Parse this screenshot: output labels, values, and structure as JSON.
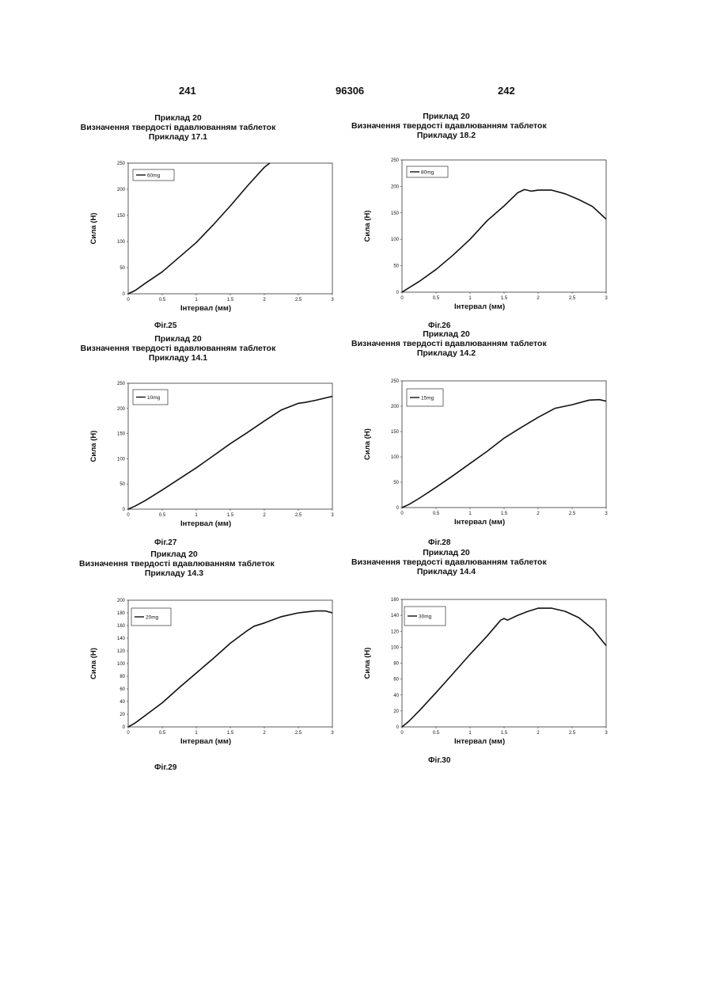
{
  "header": {
    "left": "241",
    "center": "96306",
    "right": "242"
  },
  "charts": [
    {
      "id": "fig25",
      "heading": [
        "Приклад 20",
        "Визначення твердості вдавлюванням таблеток",
        "Прикладу 17.1"
      ],
      "fig_label": "Фіг.25",
      "chart_data": {
        "type": "line",
        "xlabel": "Інтервал (мм)",
        "ylabel": "Сила (Н)",
        "xlim": [
          0,
          3
        ],
        "ylim": [
          0,
          250
        ],
        "xticks": [
          "0",
          "0.5",
          "1",
          "1.5",
          "2",
          "2.5",
          "3"
        ],
        "yticks": [
          "0",
          "50",
          "100",
          "150",
          "200",
          "250"
        ],
        "legend_position": "top-left",
        "series": [
          {
            "name": "60mg",
            "x": [
              0,
              0.1,
              0.25,
              0.5,
              0.75,
              1.0,
              1.25,
              1.5,
              1.75,
              2.0,
              2.08
            ],
            "y": [
              0,
              6,
              20,
              42,
              70,
              98,
              132,
              168,
              206,
              242,
              250
            ]
          }
        ]
      }
    },
    {
      "id": "fig26",
      "heading": [
        "Приклад 20",
        "Визначення твердості вдавлюванням таблеток",
        "Прикладу 18.2"
      ],
      "fig_label": "Фіг.26",
      "chart_data": {
        "type": "line",
        "xlabel": "Інтервал (мм)",
        "ylabel": "Сила (Н)",
        "xlim": [
          0,
          3
        ],
        "ylim": [
          0,
          250
        ],
        "xticks": [
          "0",
          "0.5",
          "1",
          "1.5",
          "2",
          "2.5",
          "3"
        ],
        "yticks": [
          "0",
          "50",
          "100",
          "150",
          "200",
          "250"
        ],
        "legend_position": "top-left",
        "series": [
          {
            "name": "80mg",
            "x": [
              0,
              0.25,
              0.5,
              0.75,
              1.0,
              1.25,
              1.5,
              1.7,
              1.8,
              1.9,
              2.0,
              2.2,
              2.4,
              2.6,
              2.8,
              3.0
            ],
            "y": [
              0,
              20,
              43,
              70,
              100,
              135,
              163,
              188,
              194,
              191,
              193,
              193,
              186,
              175,
              162,
              138
            ]
          }
        ]
      }
    },
    {
      "id": "fig27",
      "heading": [
        "Приклад 20",
        "Визначення твердості вдавлюванням таблеток",
        "Прикладу 14.1"
      ],
      "fig_label": "Фіг.27",
      "chart_data": {
        "type": "line",
        "xlabel": "Інтервал (мм)",
        "ylabel": "Сила (Н)",
        "xlim": [
          0,
          3
        ],
        "ylim": [
          0,
          250
        ],
        "xticks": [
          "0",
          "0.5",
          "1",
          "1.5",
          "2",
          "2.5",
          "3"
        ],
        "yticks": [
          "0",
          "50",
          "100",
          "150",
          "200",
          "250"
        ],
        "legend_position": "top-left",
        "series": [
          {
            "name": "10mg",
            "x": [
              0,
              0.1,
              0.25,
              0.5,
              0.75,
              1.0,
              1.25,
              1.5,
              1.75,
              2.0,
              2.25,
              2.5,
              2.6,
              2.75,
              3.0
            ],
            "y": [
              0,
              6,
              17,
              38,
              60,
              82,
              106,
              130,
              152,
              175,
              197,
              210,
              212,
              216,
              224
            ]
          }
        ]
      }
    },
    {
      "id": "fig28",
      "heading": [
        "Приклад 20",
        "Визначення твердості вдавлюванням таблеток",
        "Прикладу 14.2"
      ],
      "fig_label": "Фіг.28",
      "chart_data": {
        "type": "line",
        "xlabel": "Інтервал (мм)",
        "ylabel": "Сила (Н)",
        "xlim": [
          0,
          3
        ],
        "ylim": [
          0,
          250
        ],
        "xticks": [
          "0",
          "0.5",
          "1",
          "1.5",
          "2",
          "2.5",
          "3"
        ],
        "yticks": [
          "0",
          "50",
          "100",
          "150",
          "200",
          "250"
        ],
        "legend_position": "top-left",
        "series": [
          {
            "name": "15mg",
            "x": [
              0,
              0.1,
              0.25,
              0.5,
              0.75,
              1.0,
              1.25,
              1.5,
              1.75,
              2.0,
              2.25,
              2.5,
              2.75,
              2.9,
              3.0
            ],
            "y": [
              0,
              6,
              18,
              40,
              63,
              87,
              111,
              137,
              158,
              178,
              196,
              203,
              212,
              213,
              210
            ]
          }
        ]
      }
    },
    {
      "id": "fig29",
      "heading": [
        "Приклад 20",
        "Визначення твердості вдавлюванням таблеток",
        "Прикладу 14.3"
      ],
      "fig_label": "Фіг.29",
      "chart_data": {
        "type": "line",
        "xlabel": "Інтервал (мм)",
        "ylabel": "Сила (Н)",
        "xlim": [
          0,
          3
        ],
        "ylim": [
          0,
          200
        ],
        "xticks": [
          "0",
          "0.5",
          "1",
          "1.5",
          "2",
          "2.5",
          "3"
        ],
        "yticks": [
          "0",
          "20",
          "40",
          "60",
          "80",
          "100",
          "120",
          "140",
          "160",
          "180",
          "200"
        ],
        "legend_position": "top-left",
        "series": [
          {
            "name": "20mg",
            "x": [
              0,
              0.1,
              0.25,
              0.5,
              0.75,
              1.0,
              1.25,
              1.5,
              1.75,
              1.85,
              2.0,
              2.25,
              2.5,
              2.75,
              2.9,
              3.0
            ],
            "y": [
              0,
              6,
              18,
              38,
              62,
              85,
              108,
              132,
              152,
              159,
              164,
              174,
              180,
              183,
              183,
              180
            ]
          }
        ]
      }
    },
    {
      "id": "fig30",
      "heading": [
        "Приклад 20",
        "Визначення твердості вдавлюванням таблеток",
        "Прикладу 14.4"
      ],
      "fig_label": "Фіг.30",
      "chart_data": {
        "type": "line",
        "xlabel": "Інтервал (мм)",
        "ylabel": "Сила (Н)",
        "xlim": [
          0,
          3
        ],
        "ylim": [
          0,
          160
        ],
        "xticks": [
          "0",
          "0.5",
          "1",
          "1.5",
          "2",
          "2.5",
          "3"
        ],
        "yticks": [
          "0",
          "20",
          "40",
          "60",
          "80",
          "100",
          "120",
          "140",
          "160"
        ],
        "legend_position": "top-left",
        "series": [
          {
            "name": "30mg",
            "x": [
              0,
              0.1,
              0.25,
              0.5,
              0.75,
              1.0,
              1.25,
              1.45,
              1.5,
              1.55,
              1.7,
              1.85,
              2.0,
              2.2,
              2.4,
              2.6,
              2.8,
              3.0
            ],
            "y": [
              0,
              7,
              20,
              43,
              67,
              91,
              114,
              134,
              136,
              134,
              140,
              145,
              149,
              149,
              145,
              137,
              123,
              102
            ]
          }
        ]
      }
    }
  ]
}
